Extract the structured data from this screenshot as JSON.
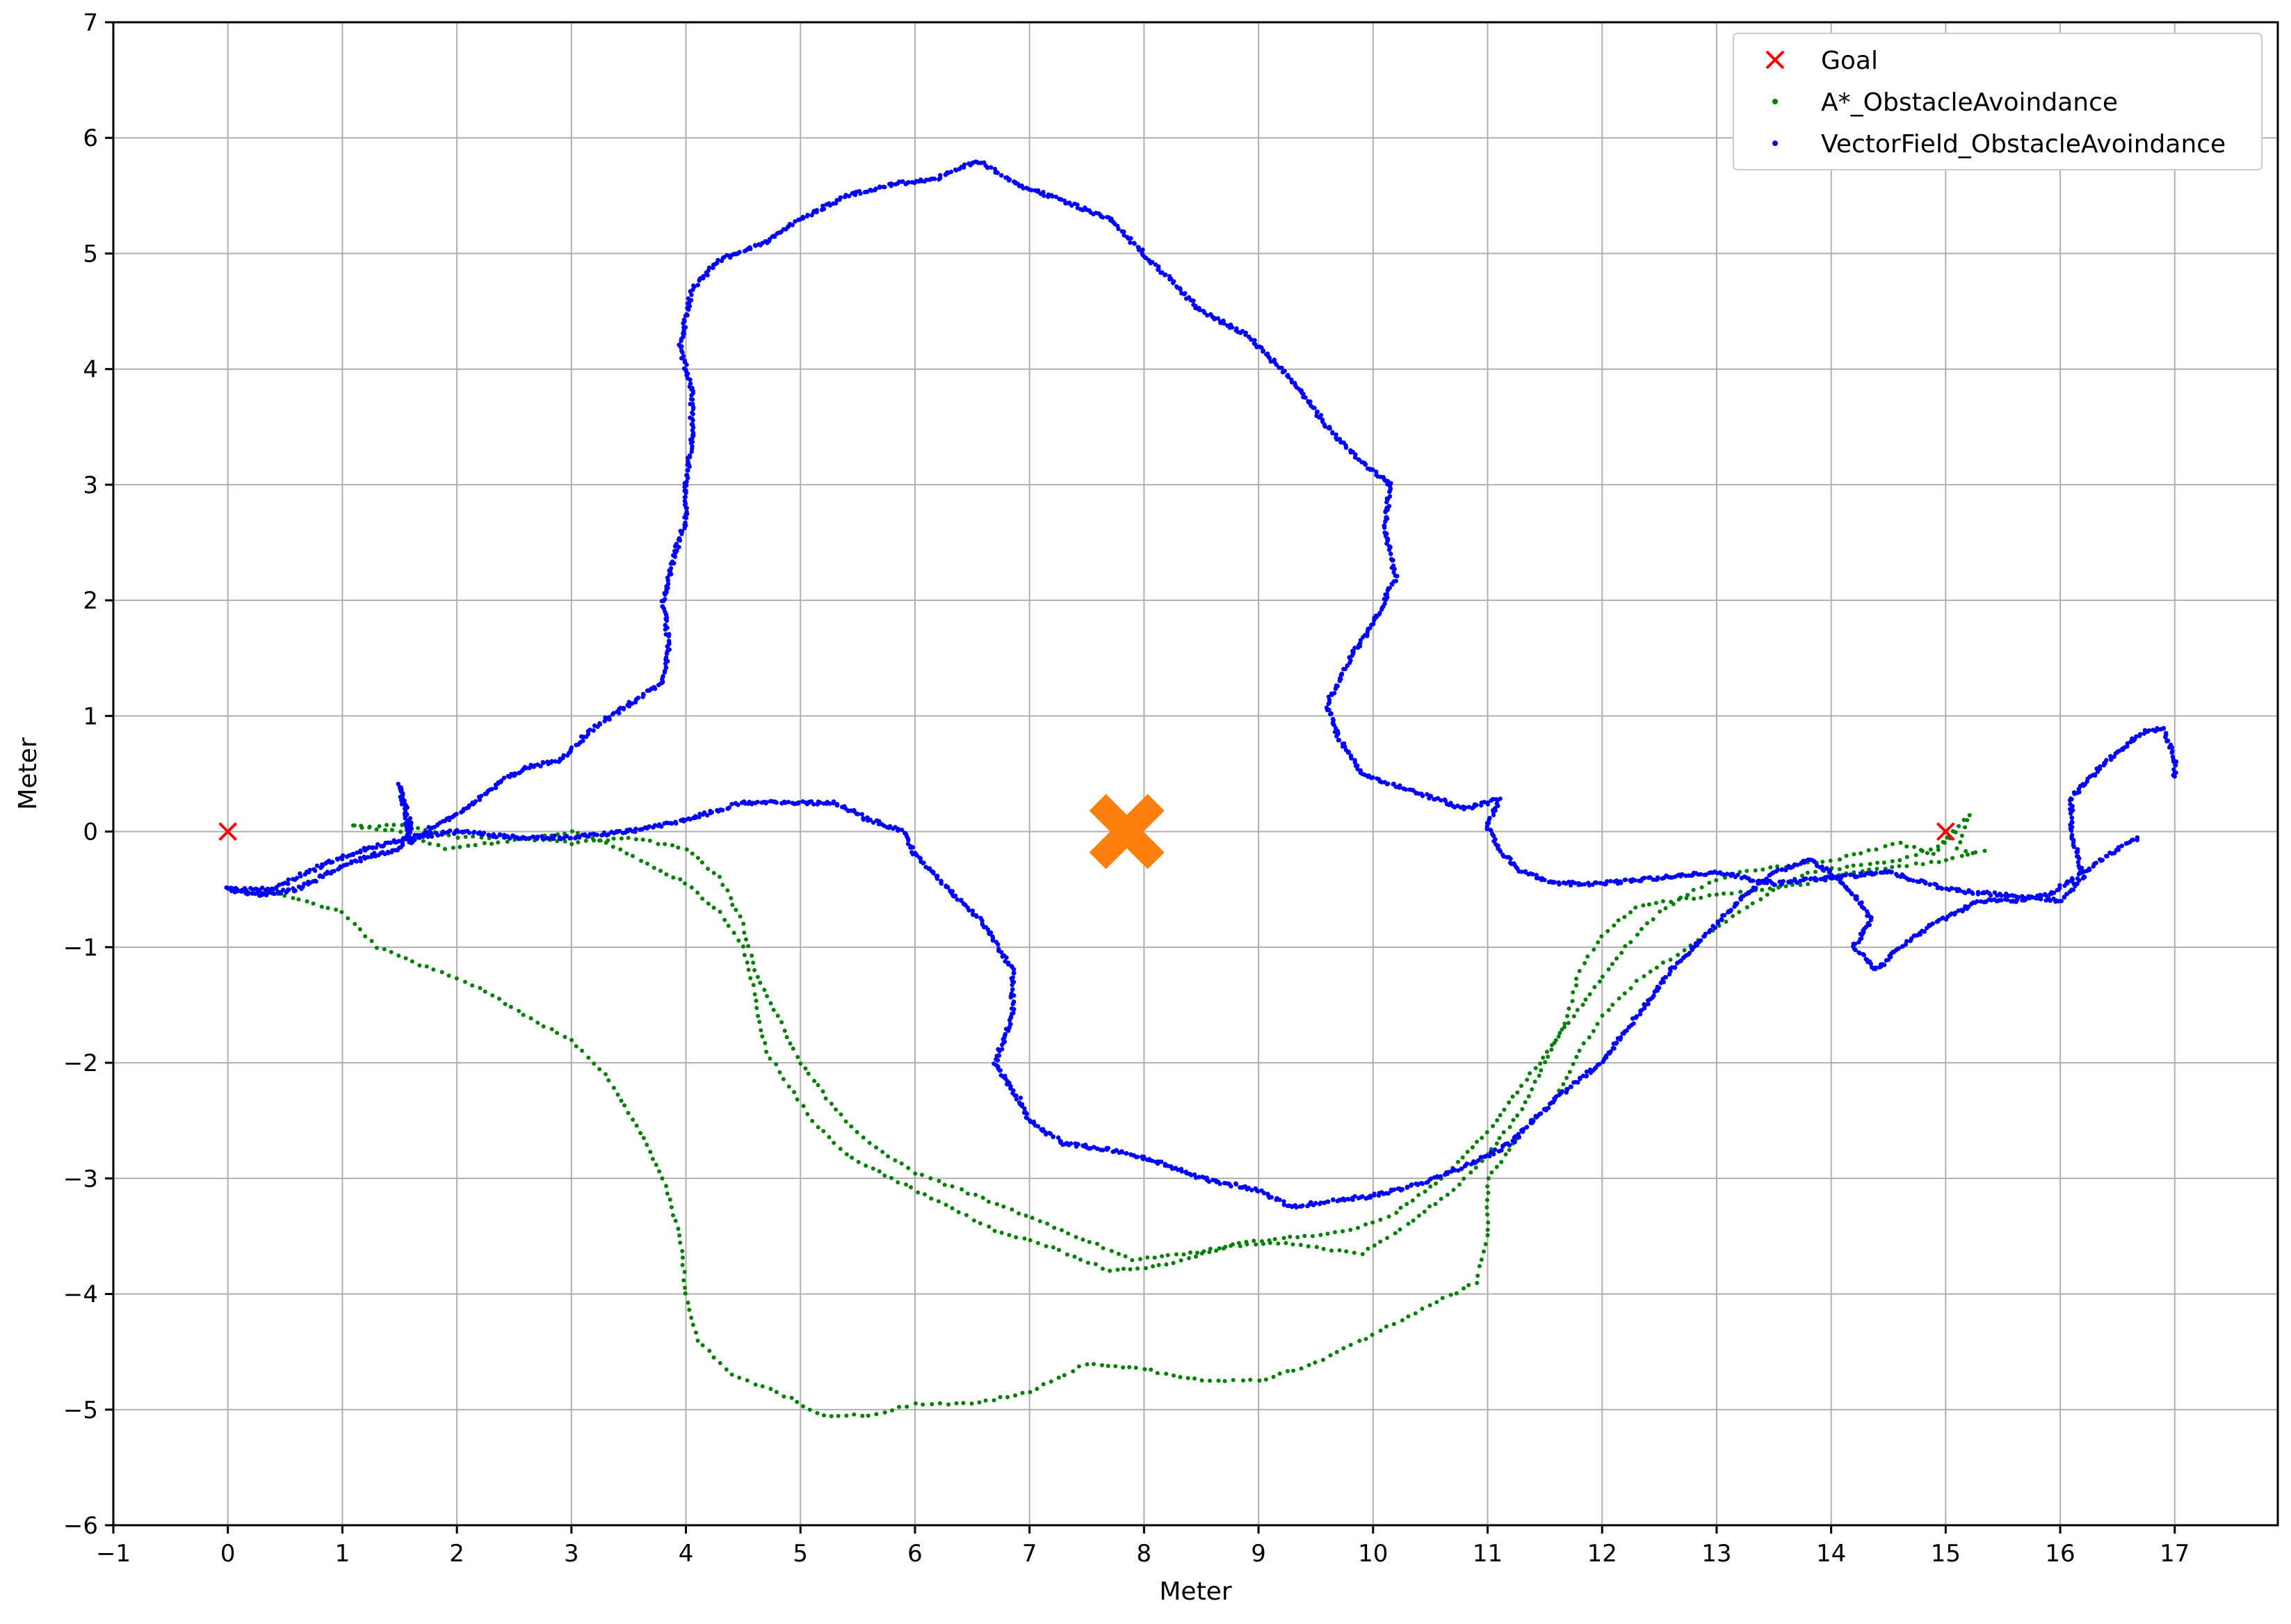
{
  "chart_data": {
    "type": "scatter",
    "title": "",
    "xlabel": "Meter",
    "ylabel": "Meter",
    "xlim": [
      -1,
      17.9
    ],
    "ylim": [
      -6,
      7
    ],
    "xticks": [
      -1,
      0,
      1,
      2,
      3,
      4,
      5,
      6,
      7,
      8,
      9,
      10,
      11,
      12,
      13,
      14,
      15,
      16,
      17
    ],
    "yticks": [
      -6,
      -5,
      -4,
      -3,
      -2,
      -1,
      0,
      1,
      2,
      3,
      4,
      5,
      6,
      7
    ],
    "xtick_labels": [
      "−1",
      "0",
      "1",
      "2",
      "3",
      "4",
      "5",
      "6",
      "7",
      "8",
      "9",
      "10",
      "11",
      "12",
      "13",
      "14",
      "15",
      "16",
      "17"
    ],
    "ytick_labels": [
      "−6",
      "−5",
      "−4",
      "−3",
      "−2",
      "−1",
      "0",
      "1",
      "2",
      "3",
      "4",
      "5",
      "6",
      "7"
    ],
    "grid": true,
    "legend_position": "top-right",
    "legend": [
      {
        "label": "Goal",
        "marker": "x",
        "color": "#ff0000"
      },
      {
        "label": "A*_ObstacleAvoindance",
        "marker": "dot",
        "color": "#008000"
      },
      {
        "label": "VectorField_ObstacleAvoindance",
        "marker": "dot",
        "color": "#0000ff"
      }
    ],
    "obstacle": {
      "x": 7.85,
      "y": 0.0,
      "marker": "X",
      "color": "#ff7f0e"
    },
    "series": [
      {
        "name": "Goal",
        "color": "#ff0000",
        "points": [
          [
            0,
            0
          ],
          [
            15,
            0
          ]
        ]
      },
      {
        "name": "VectorField_ObstacleAvoindance",
        "color": "#0000ff",
        "paths": [
          [
            [
              0.0,
              -0.5
            ],
            [
              0.3,
              -0.55
            ],
            [
              0.6,
              -0.5
            ],
            [
              0.9,
              -0.35
            ],
            [
              1.2,
              -0.22
            ],
            [
              1.5,
              -0.15
            ],
            [
              1.6,
              0.05
            ],
            [
              1.5,
              0.4
            ],
            [
              1.6,
              -0.1
            ],
            [
              1.8,
              0.05
            ],
            [
              2.1,
              0.2
            ],
            [
              2.4,
              0.45
            ],
            [
              2.6,
              0.55
            ],
            [
              2.9,
              0.62
            ],
            [
              3.2,
              0.9
            ],
            [
              3.5,
              1.1
            ],
            [
              3.8,
              1.3
            ],
            [
              3.85,
              1.6
            ],
            [
              3.8,
              2.0
            ],
            [
              3.9,
              2.4
            ],
            [
              4.0,
              2.7
            ],
            [
              4.0,
              3.0
            ],
            [
              4.05,
              3.4
            ],
            [
              4.05,
              3.8
            ],
            [
              3.95,
              4.2
            ],
            [
              4.05,
              4.7
            ],
            [
              4.3,
              4.95
            ],
            [
              4.7,
              5.1
            ],
            [
              5.0,
              5.3
            ],
            [
              5.4,
              5.5
            ],
            [
              5.8,
              5.6
            ],
            [
              6.2,
              5.65
            ],
            [
              6.55,
              5.8
            ],
            [
              6.9,
              5.6
            ],
            [
              7.3,
              5.45
            ],
            [
              7.7,
              5.3
            ],
            [
              8.1,
              4.9
            ],
            [
              8.5,
              4.5
            ],
            [
              8.9,
              4.3
            ],
            [
              9.3,
              3.9
            ],
            [
              9.6,
              3.5
            ],
            [
              9.9,
              3.2
            ],
            [
              10.15,
              3.0
            ],
            [
              10.1,
              2.6
            ],
            [
              10.2,
              2.2
            ],
            [
              10.0,
              1.8
            ],
            [
              9.8,
              1.5
            ],
            [
              9.6,
              1.1
            ],
            [
              9.7,
              0.8
            ],
            [
              9.9,
              0.5
            ],
            [
              10.2,
              0.4
            ],
            [
              10.5,
              0.3
            ],
            [
              10.8,
              0.2
            ],
            [
              11.1,
              0.28
            ],
            [
              11.0,
              0.05
            ],
            [
              11.1,
              -0.15
            ],
            [
              11.3,
              -0.35
            ],
            [
              11.6,
              -0.45
            ],
            [
              12.0,
              -0.45
            ],
            [
              12.5,
              -0.4
            ],
            [
              13.0,
              -0.35
            ],
            [
              13.5,
              -0.45
            ],
            [
              14.0,
              -0.4
            ],
            [
              14.5,
              -0.35
            ],
            [
              15.0,
              -0.5
            ],
            [
              15.5,
              -0.55
            ],
            [
              16.0,
              -0.6
            ],
            [
              16.2,
              -0.4
            ],
            [
              16.1,
              0.0
            ],
            [
              16.1,
              0.3
            ],
            [
              16.4,
              0.6
            ],
            [
              16.7,
              0.85
            ],
            [
              16.9,
              0.9
            ],
            [
              17.0,
              0.6
            ],
            [
              17.0,
              0.45
            ]
          ],
          [
            [
              0.0,
              -0.5
            ],
            [
              0.4,
              -0.5
            ],
            [
              0.8,
              -0.3
            ],
            [
              1.2,
              -0.15
            ],
            [
              1.6,
              -0.05
            ],
            [
              2.0,
              0.0
            ],
            [
              2.5,
              -0.05
            ],
            [
              3.0,
              -0.05
            ],
            [
              3.5,
              0.0
            ],
            [
              4.0,
              0.1
            ],
            [
              4.5,
              0.25
            ],
            [
              4.9,
              0.25
            ],
            [
              5.3,
              0.25
            ],
            [
              5.6,
              0.1
            ],
            [
              5.9,
              0.0
            ],
            [
              6.0,
              -0.2
            ],
            [
              6.3,
              -0.5
            ],
            [
              6.6,
              -0.8
            ],
            [
              6.85,
              -1.2
            ],
            [
              6.85,
              -1.6
            ],
            [
              6.7,
              -2.0
            ],
            [
              6.9,
              -2.3
            ],
            [
              7.0,
              -2.5
            ],
            [
              7.3,
              -2.7
            ],
            [
              7.7,
              -2.75
            ],
            [
              8.1,
              -2.85
            ],
            [
              8.5,
              -3.0
            ],
            [
              9.0,
              -3.1
            ],
            [
              9.3,
              -3.25
            ],
            [
              9.6,
              -3.2
            ],
            [
              10.0,
              -3.15
            ],
            [
              10.4,
              -3.05
            ],
            [
              10.8,
              -2.9
            ],
            [
              11.2,
              -2.7
            ],
            [
              11.6,
              -2.3
            ],
            [
              12.0,
              -2.0
            ],
            [
              12.3,
              -1.6
            ],
            [
              12.6,
              -1.2
            ],
            [
              12.9,
              -0.9
            ],
            [
              13.2,
              -0.6
            ],
            [
              13.5,
              -0.35
            ],
            [
              13.8,
              -0.25
            ],
            [
              14.0,
              -0.35
            ],
            [
              14.2,
              -0.55
            ],
            [
              14.35,
              -0.75
            ],
            [
              14.2,
              -1.0
            ],
            [
              14.4,
              -1.2
            ],
            [
              14.6,
              -1.0
            ],
            [
              14.9,
              -0.8
            ],
            [
              15.3,
              -0.6
            ],
            [
              15.6,
              -0.6
            ],
            [
              15.9,
              -0.55
            ],
            [
              16.2,
              -0.35
            ],
            [
              16.5,
              -0.15
            ],
            [
              16.7,
              -0.05
            ]
          ]
        ]
      },
      {
        "name": "A*_ObstacleAvoindance",
        "color": "#008000",
        "paths": [
          [
            [
              0.0,
              -0.5
            ],
            [
              0.5,
              -0.55
            ],
            [
              1.0,
              -0.7
            ],
            [
              1.3,
              -1.0
            ],
            [
              1.8,
              -1.2
            ],
            [
              2.2,
              -1.35
            ],
            [
              2.7,
              -1.65
            ],
            [
              3.0,
              -1.8
            ],
            [
              3.3,
              -2.1
            ],
            [
              3.6,
              -2.6
            ],
            [
              3.8,
              -3.0
            ],
            [
              3.95,
              -3.5
            ],
            [
              4.0,
              -4.0
            ],
            [
              4.1,
              -4.4
            ],
            [
              4.4,
              -4.7
            ],
            [
              4.8,
              -4.85
            ],
            [
              5.2,
              -5.05
            ],
            [
              5.6,
              -5.05
            ],
            [
              6.0,
              -4.95
            ],
            [
              6.5,
              -4.95
            ],
            [
              7.0,
              -4.85
            ],
            [
              7.5,
              -4.6
            ],
            [
              8.0,
              -4.65
            ],
            [
              8.5,
              -4.75
            ],
            [
              9.0,
              -4.75
            ],
            [
              9.5,
              -4.6
            ],
            [
              10.0,
              -4.35
            ],
            [
              10.5,
              -4.1
            ],
            [
              10.9,
              -3.9
            ],
            [
              11.0,
              -3.5
            ],
            [
              11.0,
              -3.0
            ],
            [
              11.3,
              -2.6
            ],
            [
              11.6,
              -2.3
            ],
            [
              11.8,
              -1.9
            ],
            [
              12.0,
              -1.6
            ],
            [
              12.3,
              -1.3
            ],
            [
              12.6,
              -1.1
            ],
            [
              12.9,
              -0.9
            ],
            [
              13.2,
              -0.7
            ],
            [
              13.5,
              -0.5
            ],
            [
              13.8,
              -0.35
            ],
            [
              14.2,
              -0.3
            ],
            [
              14.6,
              -0.25
            ],
            [
              15.0,
              -0.1
            ],
            [
              15.2,
              0.15
            ],
            [
              15.1,
              -0.15
            ],
            [
              15.3,
              -0.2
            ]
          ],
          [
            [
              1.1,
              0.05
            ],
            [
              1.5,
              0.0
            ],
            [
              1.9,
              -0.15
            ],
            [
              2.3,
              -0.1
            ],
            [
              2.7,
              -0.05
            ],
            [
              3.0,
              0.0
            ],
            [
              3.3,
              -0.1
            ],
            [
              3.6,
              -0.25
            ],
            [
              4.0,
              -0.45
            ],
            [
              4.3,
              -0.7
            ],
            [
              4.5,
              -1.0
            ],
            [
              4.6,
              -1.4
            ],
            [
              4.7,
              -1.9
            ],
            [
              4.9,
              -2.2
            ],
            [
              5.1,
              -2.5
            ],
            [
              5.4,
              -2.8
            ],
            [
              5.8,
              -3.0
            ],
            [
              6.2,
              -3.2
            ],
            [
              6.7,
              -3.45
            ],
            [
              7.2,
              -3.6
            ],
            [
              7.7,
              -3.8
            ],
            [
              8.2,
              -3.75
            ],
            [
              8.7,
              -3.6
            ],
            [
              9.1,
              -3.55
            ],
            [
              9.5,
              -3.6
            ],
            [
              9.9,
              -3.65
            ],
            [
              10.3,
              -3.4
            ],
            [
              10.7,
              -3.1
            ],
            [
              11.0,
              -2.8
            ],
            [
              11.3,
              -2.4
            ],
            [
              11.5,
              -2.0
            ],
            [
              11.7,
              -1.6
            ],
            [
              11.8,
              -1.2
            ],
            [
              12.0,
              -0.9
            ],
            [
              12.3,
              -0.65
            ],
            [
              12.6,
              -0.6
            ],
            [
              13.0,
              -0.55
            ],
            [
              13.4,
              -0.5
            ],
            [
              13.8,
              -0.45
            ],
            [
              14.2,
              -0.35
            ],
            [
              14.6,
              -0.3
            ],
            [
              15.0,
              -0.25
            ],
            [
              15.4,
              -0.15
            ]
          ],
          [
            [
              1.1,
              0.05
            ],
            [
              1.6,
              0.05
            ],
            [
              2.0,
              -0.05
            ],
            [
              2.5,
              -0.05
            ],
            [
              3.0,
              -0.1
            ],
            [
              3.5,
              -0.05
            ],
            [
              4.0,
              -0.15
            ],
            [
              4.3,
              -0.4
            ],
            [
              4.5,
              -0.8
            ],
            [
              4.6,
              -1.2
            ],
            [
              4.8,
              -1.6
            ],
            [
              5.0,
              -2.0
            ],
            [
              5.3,
              -2.4
            ],
            [
              5.6,
              -2.7
            ],
            [
              6.0,
              -2.95
            ],
            [
              6.4,
              -3.1
            ],
            [
              6.9,
              -3.3
            ],
            [
              7.4,
              -3.5
            ],
            [
              7.9,
              -3.7
            ],
            [
              8.4,
              -3.65
            ],
            [
              8.9,
              -3.55
            ],
            [
              9.4,
              -3.5
            ],
            [
              9.8,
              -3.45
            ],
            [
              10.2,
              -3.3
            ],
            [
              10.6,
              -3.0
            ],
            [
              11.0,
              -2.6
            ],
            [
              11.3,
              -2.2
            ],
            [
              11.6,
              -1.8
            ],
            [
              11.9,
              -1.4
            ],
            [
              12.2,
              -1.0
            ],
            [
              12.5,
              -0.7
            ],
            [
              12.8,
              -0.5
            ],
            [
              13.2,
              -0.35
            ],
            [
              13.6,
              -0.3
            ],
            [
              14.0,
              -0.25
            ],
            [
              14.4,
              -0.15
            ],
            [
              14.6,
              -0.1
            ],
            [
              14.9,
              -0.2
            ],
            [
              15.1,
              0.05
            ]
          ]
        ]
      }
    ]
  }
}
